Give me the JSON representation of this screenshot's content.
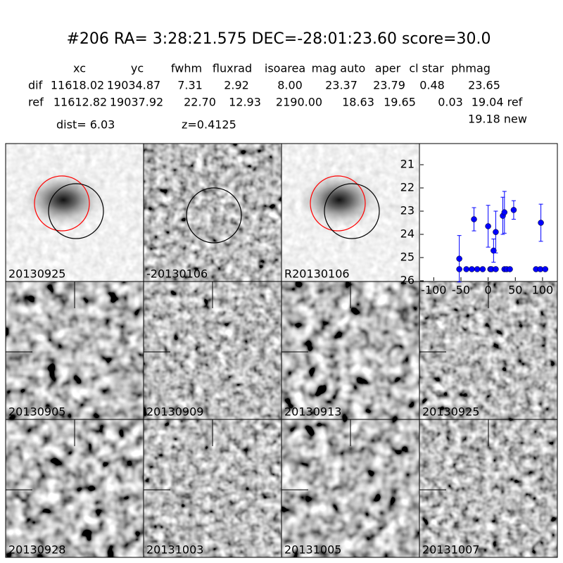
{
  "header": {
    "title": "#206   RA= 3:28:21.575 DEC=-28:01:23.60       score=30.0"
  },
  "table": {
    "columns": [
      "xc",
      "yc",
      "fwhm",
      "fluxrad",
      "isoarea",
      "mag auto",
      "aper",
      "cl star",
      "phmag"
    ],
    "rows": [
      {
        "label": "dif",
        "cells": [
          "11618.02",
          "19034.87",
          "7.31",
          "2.92",
          "8.00",
          "23.37",
          "23.79",
          "0.48",
          "23.65"
        ]
      },
      {
        "label": "ref",
        "cells": [
          "11612.82",
          "19037.92",
          "22.70",
          "12.93",
          "2190.00",
          "18.63",
          "19.65",
          "0.03",
          "19.04 ref"
        ]
      }
    ],
    "phmag_new": "19.18 new"
  },
  "info": {
    "dist": "dist=  6.03",
    "z": "z=0.4125"
  },
  "panels": [
    {
      "label": "20130925"
    },
    {
      "label": "-20130106"
    },
    {
      "label": "R20130106"
    },
    {
      "label": "20130905"
    },
    {
      "label": "20130909"
    },
    {
      "label": "20130913"
    },
    {
      "label": "20130925",
      "color": "#ff0000"
    },
    {
      "label": "20130928"
    },
    {
      "label": "20131003"
    },
    {
      "label": "20131005"
    },
    {
      "label": "20131007"
    }
  ],
  "chart_data": {
    "type": "scatter",
    "color": "#0000ff",
    "x": [
      -53,
      -53,
      -40,
      -30,
      -20,
      -10,
      -26,
      0,
      4,
      6,
      10,
      14,
      14,
      27,
      30,
      30,
      34,
      40,
      47,
      88,
      96,
      97,
      105
    ],
    "values": [
      25.05,
      25.5,
      25.5,
      25.5,
      25.5,
      25.5,
      23.35,
      23.65,
      25.5,
      25.5,
      24.7,
      23.9,
      25.5,
      23.2,
      23.05,
      25.5,
      25.5,
      25.5,
      22.95,
      25.5,
      25.5,
      23.5,
      25.5
    ],
    "errors": [
      1.0,
      null,
      null,
      null,
      null,
      null,
      0.5,
      0.9,
      null,
      null,
      0.5,
      0.9,
      null,
      0.8,
      0.9,
      null,
      null,
      null,
      0.4,
      null,
      null,
      0.8,
      null
    ],
    "xlim": [
      -125,
      126
    ],
    "ylim": [
      26,
      20.12
    ],
    "xticks": [
      -100,
      -50,
      0,
      50,
      100
    ],
    "yticks": [
      21,
      22,
      23,
      24,
      25,
      26
    ]
  }
}
